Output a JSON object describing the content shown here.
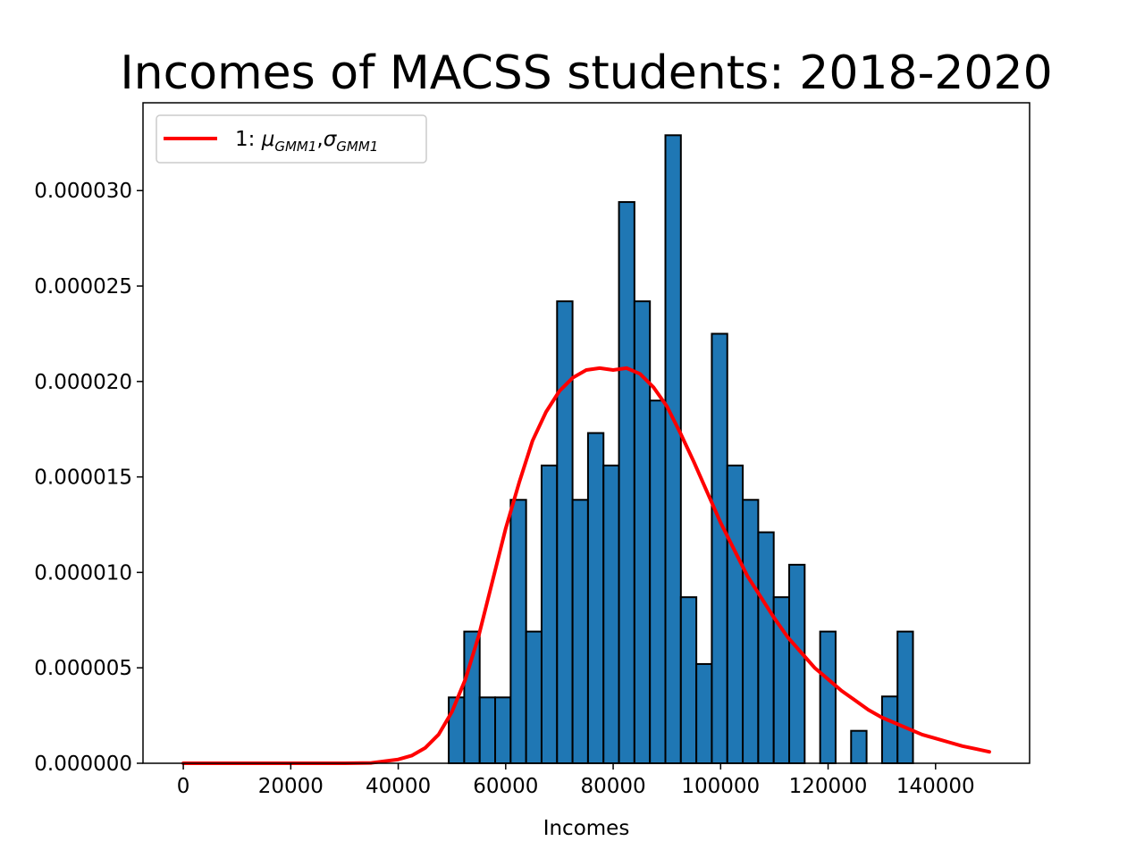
{
  "chart_data": {
    "type": "bar",
    "title": "Incomes of MACSS students: 2018-2020",
    "xlabel": "Incomes",
    "ylabel": "",
    "xlim": [
      -7500,
      157500
    ],
    "ylim": [
      0,
      3.46e-05
    ],
    "xticks": [
      0,
      20000,
      40000,
      60000,
      80000,
      100000,
      120000,
      140000
    ],
    "xtick_labels": [
      "0",
      "20000",
      "40000",
      "60000",
      "80000",
      "100000",
      "120000",
      "140000"
    ],
    "yticks": [
      0,
      5e-06,
      1e-05,
      1.5e-05,
      2e-05,
      2.5e-05,
      3e-05
    ],
    "ytick_labels": [
      "0.000000",
      "0.000005",
      "0.000010",
      "0.000015",
      "0.000020",
      "0.000025",
      "0.000030"
    ],
    "grid": false,
    "legend": {
      "placement": "top-left",
      "entries": [
        {
          "prefix": "1: ",
          "sym1": "μ",
          "sub1": "GMM1",
          "sep": ",",
          "sym2": "σ",
          "sub2": "GMM1"
        }
      ]
    },
    "histogram": {
      "bin_width": 2880,
      "bins": [
        {
          "x0": 49400,
          "value": 3.45e-06
        },
        {
          "x0": 52280,
          "value": 6.9e-06
        },
        {
          "x0": 55160,
          "value": 3.45e-06
        },
        {
          "x0": 58040,
          "value": 3.45e-06
        },
        {
          "x0": 60920,
          "value": 1.38e-05
        },
        {
          "x0": 63800,
          "value": 6.9e-06
        },
        {
          "x0": 66680,
          "value": 1.56e-05
        },
        {
          "x0": 69560,
          "value": 2.42e-05
        },
        {
          "x0": 72440,
          "value": 1.38e-05
        },
        {
          "x0": 75320,
          "value": 1.73e-05
        },
        {
          "x0": 78200,
          "value": 1.56e-05
        },
        {
          "x0": 81080,
          "value": 2.94e-05
        },
        {
          "x0": 83960,
          "value": 2.42e-05
        },
        {
          "x0": 86840,
          "value": 1.9e-05
        },
        {
          "x0": 89720,
          "value": 3.29e-05
        },
        {
          "x0": 92600,
          "value": 8.7e-06
        },
        {
          "x0": 95480,
          "value": 5.2e-06
        },
        {
          "x0": 98360,
          "value": 2.25e-05
        },
        {
          "x0": 101240,
          "value": 1.56e-05
        },
        {
          "x0": 104120,
          "value": 1.38e-05
        },
        {
          "x0": 107000,
          "value": 1.21e-05
        },
        {
          "x0": 109880,
          "value": 8.7e-06
        },
        {
          "x0": 112760,
          "value": 1.04e-05
        },
        {
          "x0": 115640,
          "value": 0
        },
        {
          "x0": 118520,
          "value": 6.9e-06
        },
        {
          "x0": 121400,
          "value": 0
        },
        {
          "x0": 124280,
          "value": 1.7e-06
        },
        {
          "x0": 127160,
          "value": 0
        },
        {
          "x0": 130040,
          "value": 3.5e-06
        },
        {
          "x0": 132920,
          "value": 6.9e-06
        }
      ]
    },
    "series": [
      {
        "name": "1: μGMM1,σGMM1",
        "type": "line",
        "x": [
          0,
          5000,
          10000,
          15000,
          20000,
          25000,
          30000,
          35000,
          40000,
          42500,
          45000,
          47500,
          50000,
          52500,
          55000,
          57500,
          60000,
          62500,
          65000,
          67500,
          70000,
          72500,
          75000,
          77500,
          80000,
          82500,
          85000,
          87500,
          90000,
          92500,
          95000,
          97500,
          100000,
          102500,
          105000,
          107500,
          110000,
          112500,
          115000,
          117500,
          120000,
          122500,
          125000,
          127500,
          130000,
          132500,
          135000,
          137500,
          140000,
          142500,
          145000,
          147500,
          150000
        ],
        "y": [
          0,
          0,
          0,
          0,
          0,
          0,
          0,
          2e-08,
          2e-07,
          4e-07,
          8e-07,
          1.5e-06,
          2.7e-06,
          4.4e-06,
          6.7e-06,
          9.5e-06,
          1.23e-05,
          1.47e-05,
          1.69e-05,
          1.84e-05,
          1.95e-05,
          2.02e-05,
          2.06e-05,
          2.07e-05,
          2.06e-05,
          2.07e-05,
          2.04e-05,
          1.97e-05,
          1.87e-05,
          1.73e-05,
          1.58e-05,
          1.42e-05,
          1.26e-05,
          1.12e-05,
          9.8e-06,
          8.7e-06,
          7.6e-06,
          6.6e-06,
          5.8e-06,
          5e-06,
          4.4e-06,
          3.8e-06,
          3.3e-06,
          2.8e-06,
          2.4e-06,
          2.1e-06,
          1.8e-06,
          1.5e-06,
          1.3e-06,
          1.1e-06,
          9e-07,
          7.5e-07,
          6e-07
        ],
        "color": "#ff0000"
      }
    ],
    "colors": {
      "bar_fill": "#1f77b4",
      "bar_edge": "#000000",
      "line": "#ff0000"
    }
  }
}
